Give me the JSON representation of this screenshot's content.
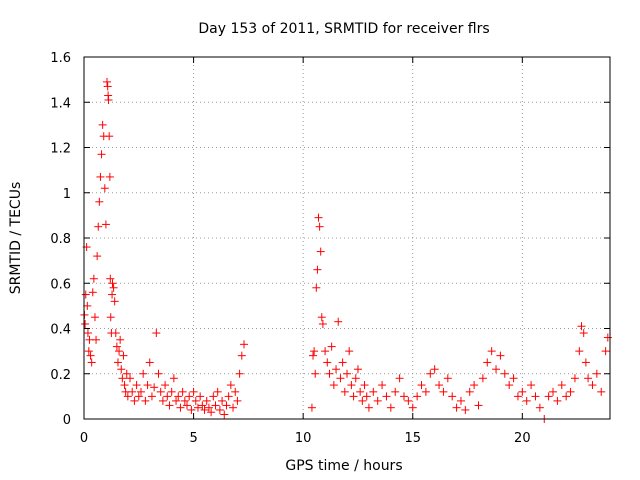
{
  "chart_data": {
    "type": "scatter",
    "title": "Day 153 of 2011, SRMTID for receiver flrs",
    "xlabel": "GPS time / hours",
    "ylabel": "SRMTID / TECUs",
    "xlim": [
      0,
      24
    ],
    "ylim": [
      0,
      1.6
    ],
    "xticks": [
      0,
      5,
      10,
      15,
      20
    ],
    "yticks": [
      0,
      0.2,
      0.4,
      0.6,
      0.8,
      1,
      1.2,
      1.4,
      1.6
    ],
    "xtick_labels": [
      "0",
      "5",
      "10",
      "15",
      "20"
    ],
    "ytick_labels": [
      "0",
      "0.2",
      "0.4",
      "0.6",
      "0.8",
      "1",
      "1.2",
      "1.4",
      "1.6"
    ],
    "grid": true,
    "marker": "plus",
    "color": "#ff0000",
    "series": [
      {
        "name": "SRMTID",
        "x": [
          0.02,
          0.05,
          0.08,
          0.12,
          0.15,
          0.18,
          0.22,
          0.25,
          0.3,
          0.35,
          0.4,
          0.45,
          0.5,
          0.55,
          0.6,
          0.65,
          0.7,
          0.75,
          0.8,
          0.85,
          0.9,
          0.95,
          1.0,
          1.05,
          1.08,
          1.1,
          1.12,
          1.15,
          1.18,
          1.2,
          1.22,
          1.25,
          1.28,
          1.3,
          1.35,
          1.4,
          1.45,
          1.5,
          1.55,
          1.6,
          1.65,
          1.7,
          1.75,
          1.8,
          1.85,
          1.9,
          1.95,
          2.0,
          2.1,
          2.2,
          2.3,
          2.4,
          2.5,
          2.6,
          2.7,
          2.8,
          2.9,
          3.0,
          3.1,
          3.2,
          3.3,
          3.4,
          3.5,
          3.6,
          3.7,
          3.8,
          3.9,
          4.0,
          4.1,
          4.2,
          4.3,
          4.4,
          4.5,
          4.6,
          4.7,
          4.8,
          4.9,
          5.0,
          5.1,
          5.2,
          5.3,
          5.4,
          5.5,
          5.6,
          5.7,
          5.8,
          5.9,
          6.0,
          6.1,
          6.2,
          6.3,
          6.4,
          6.5,
          6.6,
          6.7,
          6.8,
          6.9,
          7.0,
          7.1,
          7.2,
          7.3,
          10.4,
          10.45,
          10.5,
          10.55,
          10.6,
          10.65,
          10.7,
          10.75,
          10.8,
          10.85,
          10.9,
          11.0,
          11.1,
          11.2,
          11.3,
          11.4,
          11.5,
          11.6,
          11.7,
          11.8,
          11.9,
          12.0,
          12.1,
          12.2,
          12.3,
          12.4,
          12.5,
          12.6,
          12.7,
          12.8,
          12.9,
          13.0,
          13.2,
          13.4,
          13.6,
          13.8,
          14.0,
          14.2,
          14.4,
          14.6,
          14.8,
          15.0,
          15.2,
          15.4,
          15.6,
          15.8,
          16.0,
          16.2,
          16.4,
          16.6,
          16.8,
          17.0,
          17.2,
          17.4,
          17.6,
          17.8,
          18.0,
          18.2,
          18.4,
          18.6,
          18.8,
          19.0,
          19.2,
          19.4,
          19.6,
          19.8,
          20.0,
          20.2,
          20.4,
          20.6,
          20.8,
          21.0,
          21.2,
          21.4,
          21.6,
          21.8,
          22.0,
          22.2,
          22.4,
          22.6,
          22.7,
          22.8,
          22.9,
          23.0,
          23.2,
          23.4,
          23.6,
          23.8,
          23.9
        ],
        "y": [
          0.46,
          0.42,
          0.55,
          0.76,
          0.5,
          0.38,
          0.3,
          0.35,
          0.28,
          0.25,
          0.56,
          0.62,
          0.45,
          0.35,
          0.72,
          0.85,
          0.96,
          1.07,
          1.17,
          1.3,
          1.25,
          1.02,
          0.86,
          1.49,
          1.47,
          1.43,
          1.41,
          1.25,
          1.07,
          0.62,
          0.45,
          0.38,
          0.55,
          0.6,
          0.58,
          0.52,
          0.38,
          0.32,
          0.25,
          0.3,
          0.35,
          0.22,
          0.18,
          0.28,
          0.15,
          0.12,
          0.2,
          0.1,
          0.18,
          0.12,
          0.08,
          0.15,
          0.1,
          0.12,
          0.2,
          0.08,
          0.15,
          0.25,
          0.1,
          0.14,
          0.38,
          0.2,
          0.12,
          0.08,
          0.15,
          0.1,
          0.06,
          0.12,
          0.18,
          0.08,
          0.1,
          0.05,
          0.12,
          0.08,
          0.06,
          0.1,
          0.04,
          0.12,
          0.08,
          0.05,
          0.1,
          0.06,
          0.04,
          0.08,
          0.05,
          0.03,
          0.1,
          0.06,
          0.12,
          0.04,
          0.08,
          0.02,
          0.06,
          0.1,
          0.15,
          0.05,
          0.12,
          0.08,
          0.2,
          0.28,
          0.33,
          0.05,
          0.28,
          0.3,
          0.2,
          0.58,
          0.66,
          0.89,
          0.85,
          0.74,
          0.45,
          0.42,
          0.3,
          0.25,
          0.2,
          0.32,
          0.15,
          0.22,
          0.43,
          0.18,
          0.25,
          0.12,
          0.2,
          0.3,
          0.15,
          0.1,
          0.18,
          0.22,
          0.12,
          0.08,
          0.15,
          0.1,
          0.05,
          0.12,
          0.08,
          0.15,
          0.1,
          0.05,
          0.12,
          0.18,
          0.1,
          0.08,
          0.05,
          0.1,
          0.15,
          0.12,
          0.2,
          0.22,
          0.15,
          0.12,
          0.18,
          0.1,
          0.05,
          0.08,
          0.04,
          0.12,
          0.15,
          0.06,
          0.18,
          0.25,
          0.3,
          0.22,
          0.28,
          0.2,
          0.15,
          0.18,
          0.1,
          0.12,
          0.08,
          0.15,
          0.1,
          0.05,
          0.0,
          0.1,
          0.12,
          0.08,
          0.15,
          0.1,
          0.12,
          0.18,
          0.3,
          0.41,
          0.38,
          0.25,
          0.18,
          0.15,
          0.2,
          0.12,
          0.3,
          0.36
        ]
      }
    ]
  }
}
